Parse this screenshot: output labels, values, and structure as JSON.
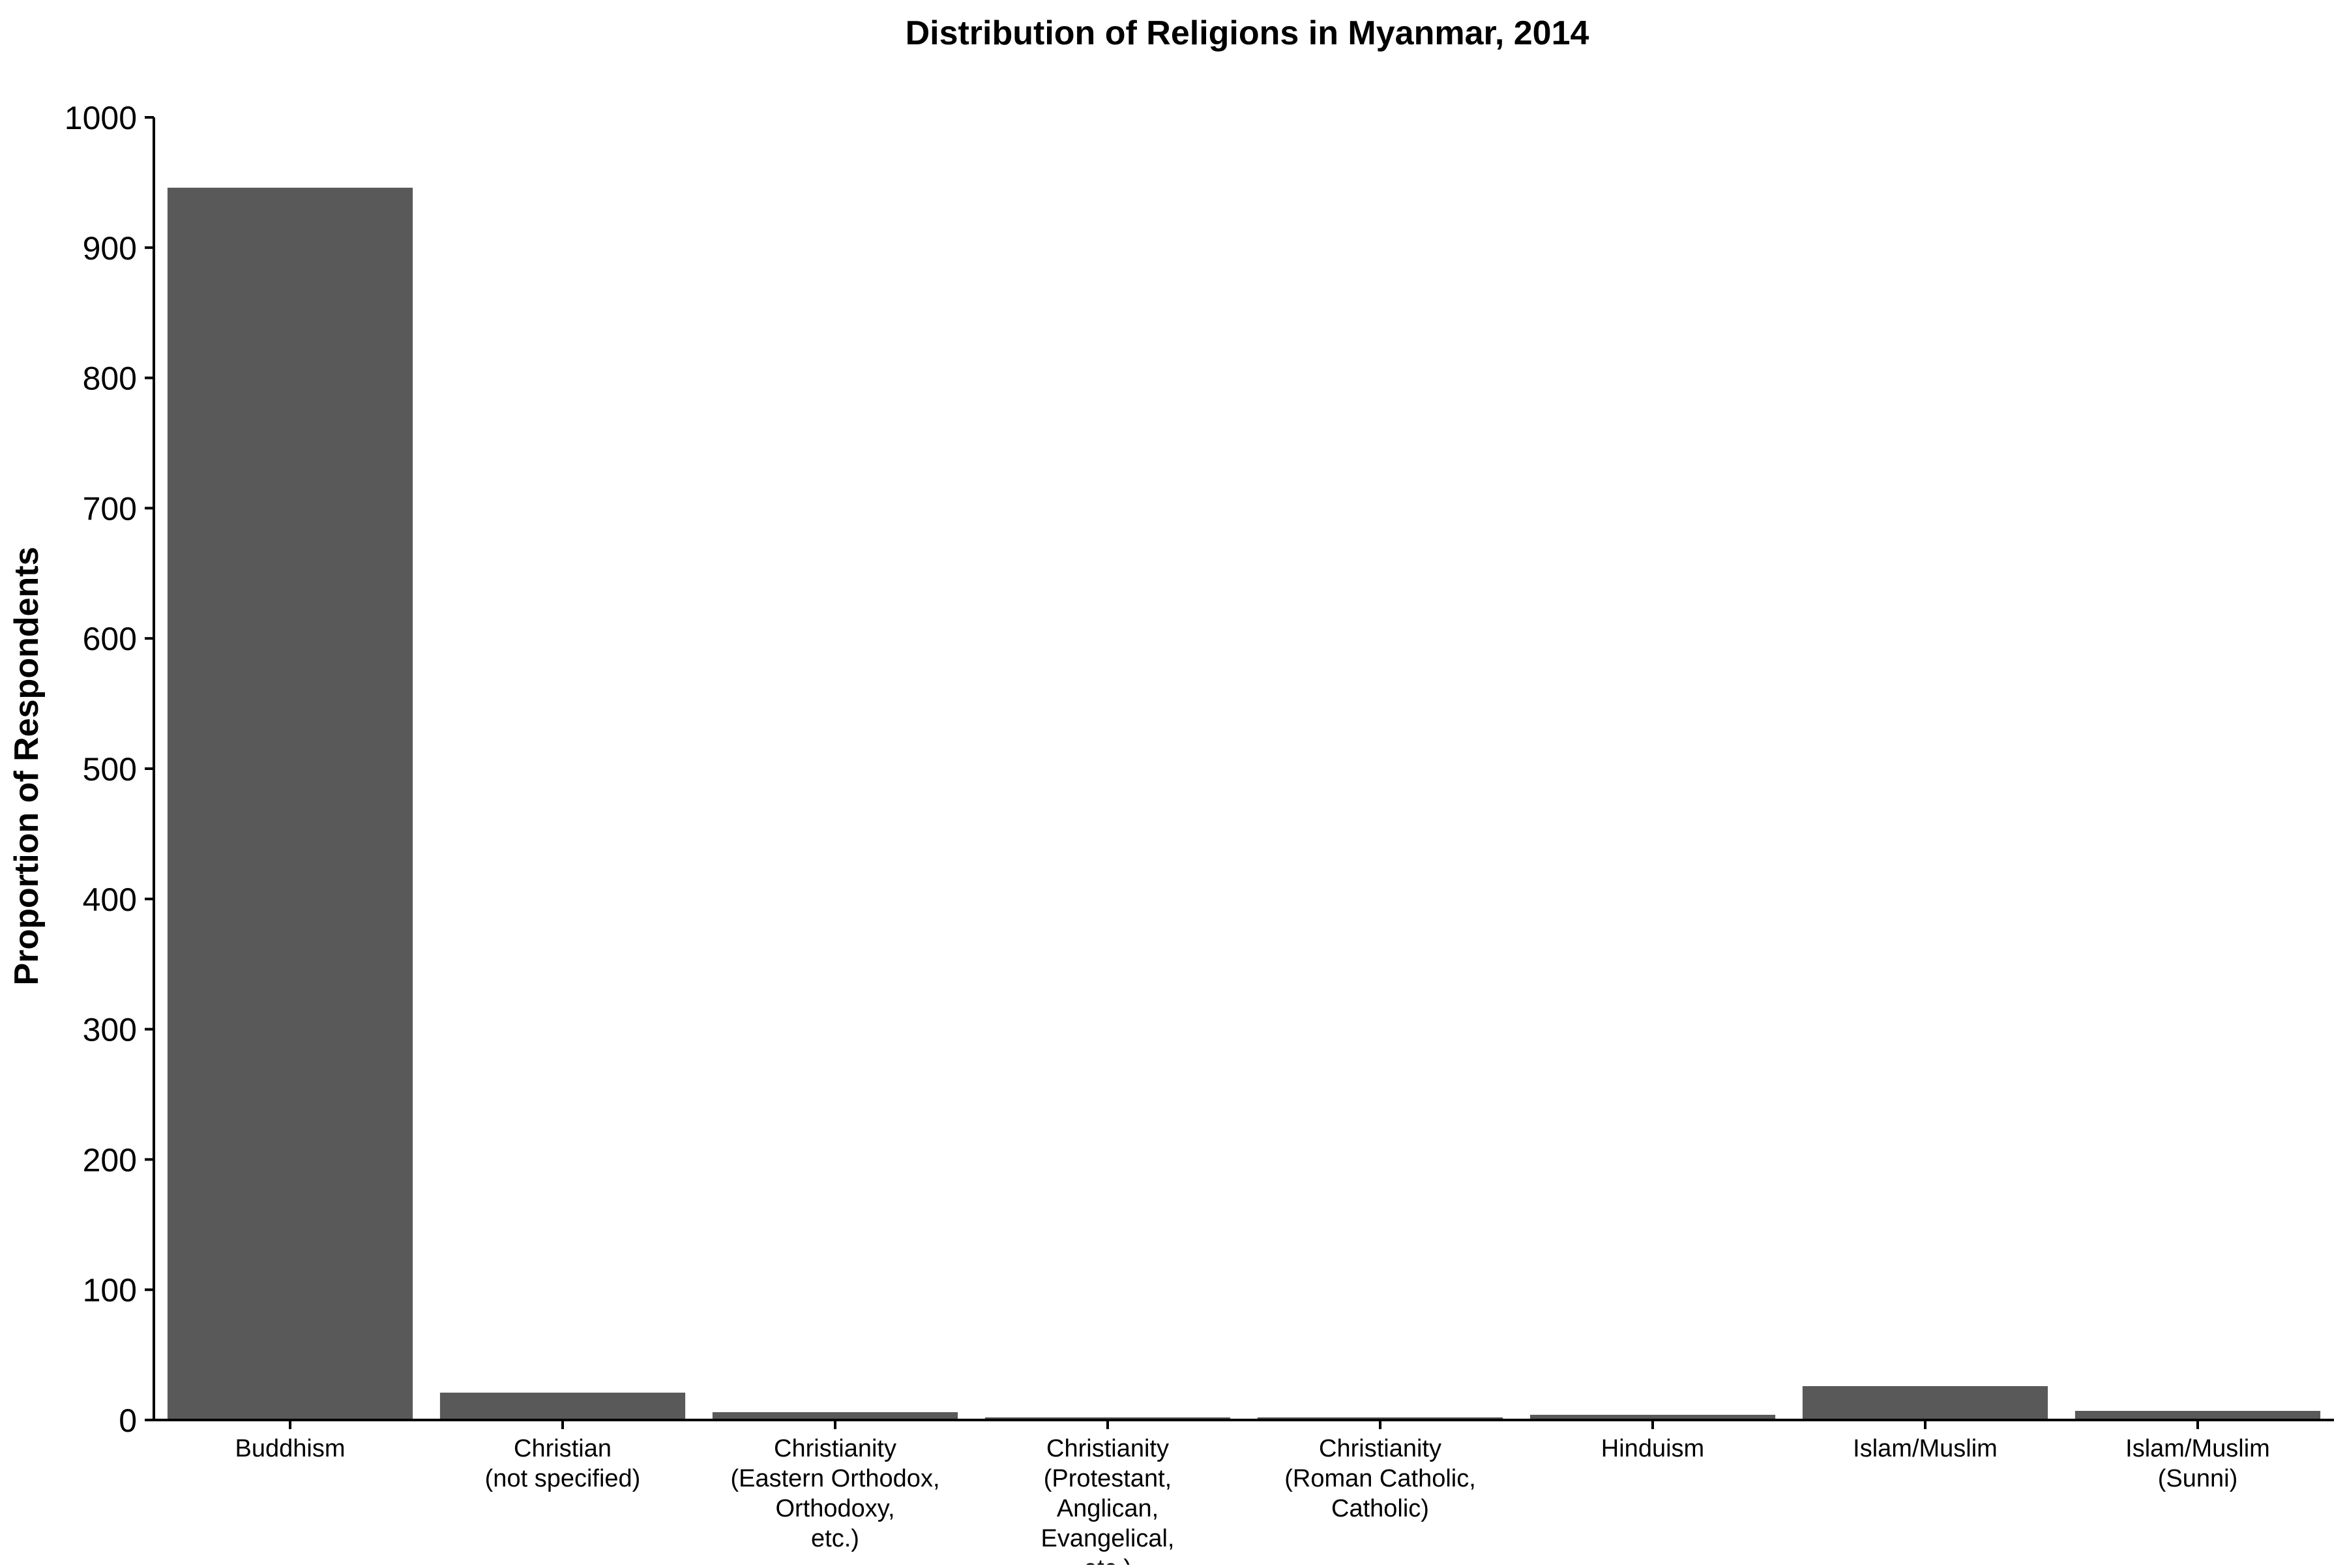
{
  "chart_data": {
    "type": "bar",
    "title": "Distribution of Religions in Myanmar, 2014",
    "xlabel": "",
    "ylabel": "Proportion of Respondents",
    "ylim": [
      0,
      1000
    ],
    "yticks": [
      0,
      100,
      200,
      300,
      400,
      500,
      600,
      700,
      800,
      900,
      1000
    ],
    "grid": false,
    "legend": "none",
    "bar_color": "#595959",
    "categories": [
      [
        "Buddhism"
      ],
      [
        "Christian",
        "(not specified)"
      ],
      [
        "Christianity",
        "(Eastern Orthodox,",
        "Orthodoxy,",
        "etc.)"
      ],
      [
        "Christianity",
        "(Protestant,",
        "Anglican,",
        "Evangelical,",
        "etc.)"
      ],
      [
        "Christianity",
        "(Roman Catholic,",
        "Catholic)"
      ],
      [
        "Hinduism"
      ],
      [
        "Islam/Muslim"
      ],
      [
        "Islam/Muslim",
        "(Sunni)"
      ]
    ],
    "values": [
      946,
      21,
      6,
      2,
      2,
      4,
      26,
      7
    ]
  }
}
